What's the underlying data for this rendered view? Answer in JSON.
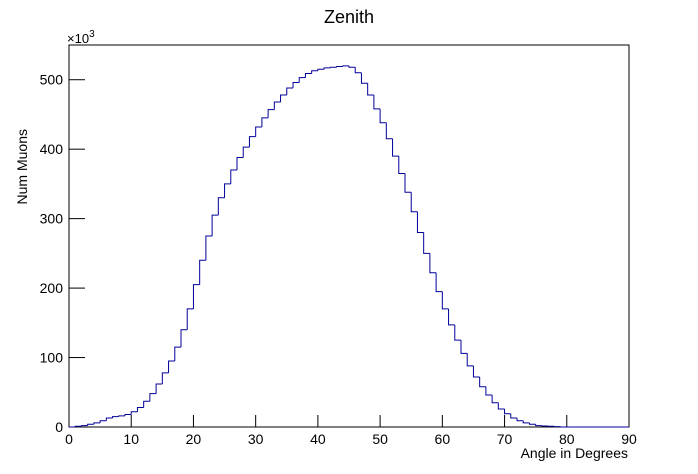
{
  "chart_data": {
    "type": "histogram",
    "title": "Zenith",
    "xlabel": "Angle in Degrees",
    "ylabel": "Num Muons",
    "y_multiplier": "×10",
    "y_multiplier_exp": "3",
    "bins": [
      0,
      1,
      2,
      3,
      4,
      5,
      6,
      7,
      8,
      9,
      10,
      11,
      12,
      13,
      14,
      15,
      16,
      17,
      18,
      19,
      20,
      21,
      22,
      23,
      24,
      25,
      26,
      27,
      28,
      29,
      30,
      31,
      32,
      33,
      34,
      35,
      36,
      37,
      38,
      39,
      40,
      41,
      42,
      43,
      44,
      45,
      46,
      47,
      48,
      49,
      50,
      51,
      52,
      53,
      54,
      55,
      56,
      57,
      58,
      59,
      60,
      61,
      62,
      63,
      64,
      65,
      66,
      67,
      68,
      69,
      70,
      71,
      72,
      73,
      74,
      75,
      76,
      77,
      78,
      79,
      80,
      81,
      82,
      83,
      84,
      85,
      86,
      87,
      88,
      89,
      90
    ],
    "values": [
      0,
      1,
      2,
      4,
      6,
      9,
      13,
      15,
      16,
      18,
      22,
      28,
      37,
      48,
      62,
      78,
      95,
      115,
      140,
      170,
      205,
      240,
      275,
      305,
      330,
      350,
      370,
      388,
      403,
      418,
      432,
      445,
      457,
      468,
      478,
      488,
      496,
      503,
      509,
      513,
      515,
      517,
      518,
      519,
      520,
      518,
      510,
      495,
      478,
      458,
      438,
      415,
      390,
      365,
      338,
      310,
      280,
      250,
      222,
      195,
      170,
      147,
      125,
      106,
      88,
      72,
      58,
      46,
      35,
      26,
      19,
      13,
      9,
      6,
      4,
      2,
      1.5,
      1,
      0.5,
      0,
      0,
      0,
      0,
      0,
      0,
      0,
      0,
      0,
      0,
      0
    ],
    "color": "#000099",
    "xlim": [
      0,
      90
    ],
    "xticks": [
      0,
      10,
      20,
      30,
      40,
      50,
      60,
      70,
      80,
      90
    ],
    "ylim": [
      0,
      550
    ],
    "yticks": [
      0,
      100,
      200,
      300,
      400,
      500
    ]
  }
}
